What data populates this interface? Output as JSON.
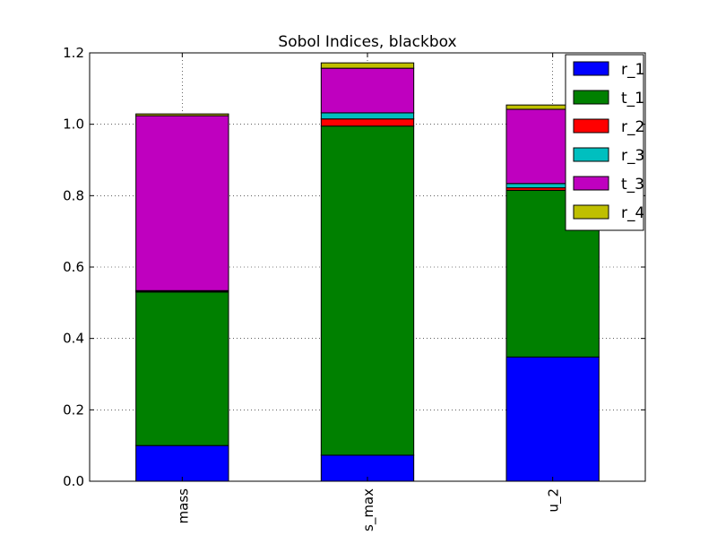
{
  "chart_data": {
    "type": "bar",
    "stacked": true,
    "title": "Sobol Indices, blackbox",
    "xlabel": "",
    "ylabel": "",
    "categories": [
      "mass",
      "s_max",
      "u_2"
    ],
    "ylim": [
      0,
      1.2
    ],
    "yticks": [
      "0.0",
      "0.2",
      "0.4",
      "0.6",
      "0.8",
      "1.0",
      "1.2"
    ],
    "grid": true,
    "legend_position": "top-right",
    "series": [
      {
        "name": "r_1",
        "color": "#0000ff",
        "values": [
          0.1,
          0.073,
          0.348
        ]
      },
      {
        "name": "t_1",
        "color": "#008000",
        "values": [
          0.43,
          0.922,
          0.467
        ]
      },
      {
        "name": "r_2",
        "color": "#ff0000",
        "values": [
          0.002,
          0.02,
          0.007
        ]
      },
      {
        "name": "r_3",
        "color": "#00bfbf",
        "values": [
          0.002,
          0.017,
          0.012
        ]
      },
      {
        "name": "t_3",
        "color": "#bf00bf",
        "values": [
          0.49,
          0.125,
          0.208
        ]
      },
      {
        "name": "r_4",
        "color": "#bfbf00",
        "values": [
          0.005,
          0.015,
          0.012
        ]
      }
    ]
  }
}
